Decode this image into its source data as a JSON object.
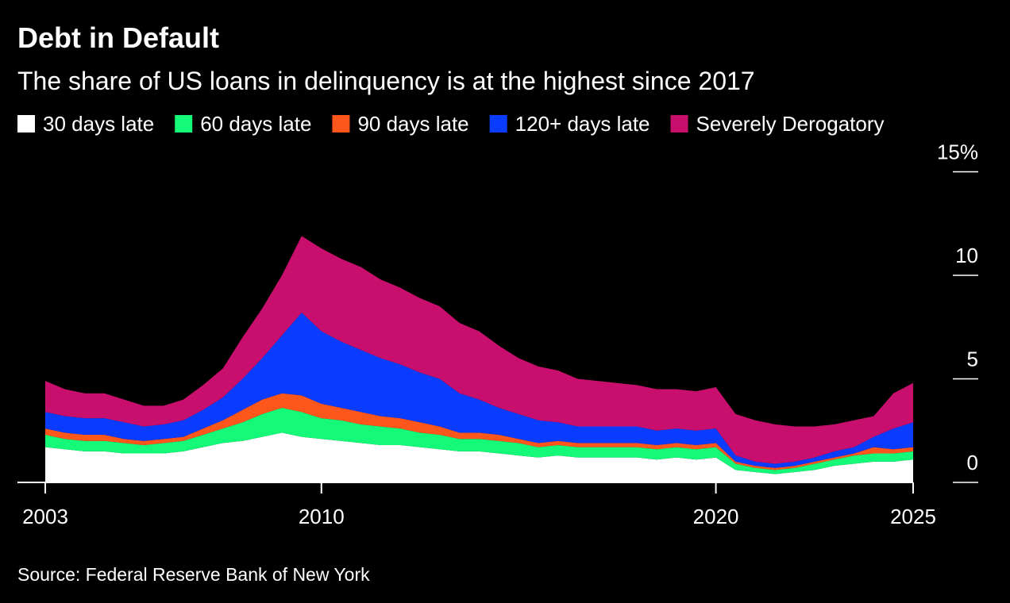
{
  "chart_data": {
    "type": "stacked_area",
    "title": "Debt in Default",
    "subtitle": "The share of US loans in delinquency is at the highest since 2017",
    "source": "Source: Federal Reserve Bank of New York",
    "x": [
      2003,
      2003.5,
      2004,
      2004.5,
      2005,
      2005.5,
      2006,
      2006.5,
      2007,
      2007.5,
      2008,
      2008.5,
      2009,
      2009.5,
      2010,
      2010.5,
      2011,
      2011.5,
      2012,
      2012.5,
      2013,
      2013.5,
      2014,
      2014.5,
      2015,
      2015.5,
      2016,
      2016.5,
      2017,
      2017.5,
      2018,
      2018.5,
      2019,
      2019.5,
      2020,
      2020.5,
      2021,
      2021.5,
      2022,
      2022.5,
      2023,
      2023.5,
      2024,
      2024.5,
      2025
    ],
    "series": [
      {
        "name": "30 days late",
        "color": "#ffffff",
        "values": [
          1.7,
          1.6,
          1.5,
          1.5,
          1.4,
          1.4,
          1.4,
          1.5,
          1.7,
          1.9,
          2.0,
          2.2,
          2.4,
          2.2,
          2.1,
          2.0,
          1.9,
          1.8,
          1.8,
          1.7,
          1.6,
          1.5,
          1.5,
          1.4,
          1.3,
          1.2,
          1.3,
          1.2,
          1.2,
          1.2,
          1.2,
          1.1,
          1.2,
          1.1,
          1.2,
          0.6,
          0.5,
          0.4,
          0.5,
          0.6,
          0.8,
          0.9,
          1.0,
          1.0,
          1.1
        ]
      },
      {
        "name": "60 days late",
        "color": "#14fa78",
        "values": [
          0.6,
          0.5,
          0.5,
          0.5,
          0.5,
          0.4,
          0.5,
          0.5,
          0.6,
          0.7,
          0.9,
          1.1,
          1.2,
          1.2,
          1.0,
          1.0,
          0.9,
          0.9,
          0.8,
          0.7,
          0.7,
          0.6,
          0.6,
          0.6,
          0.6,
          0.5,
          0.5,
          0.5,
          0.5,
          0.5,
          0.5,
          0.5,
          0.5,
          0.5,
          0.5,
          0.3,
          0.2,
          0.2,
          0.2,
          0.3,
          0.3,
          0.4,
          0.4,
          0.4,
          0.4
        ]
      },
      {
        "name": "90 days late",
        "color": "#ff561c",
        "values": [
          0.3,
          0.3,
          0.3,
          0.3,
          0.2,
          0.2,
          0.2,
          0.2,
          0.3,
          0.4,
          0.6,
          0.7,
          0.7,
          0.8,
          0.7,
          0.6,
          0.6,
          0.5,
          0.5,
          0.5,
          0.4,
          0.3,
          0.3,
          0.3,
          0.2,
          0.2,
          0.2,
          0.2,
          0.2,
          0.2,
          0.2,
          0.2,
          0.2,
          0.2,
          0.2,
          0.1,
          0.1,
          0.1,
          0.1,
          0.1,
          0.1,
          0.1,
          0.3,
          0.2,
          0.2
        ]
      },
      {
        "name": "120+ days late",
        "color": "#0a3cff",
        "values": [
          0.8,
          0.8,
          0.8,
          0.8,
          0.8,
          0.7,
          0.7,
          0.8,
          0.9,
          1.1,
          1.5,
          2.0,
          2.8,
          4.0,
          3.5,
          3.2,
          3.0,
          2.8,
          2.6,
          2.4,
          2.3,
          1.9,
          1.6,
          1.3,
          1.2,
          1.1,
          0.9,
          0.8,
          0.8,
          0.8,
          0.8,
          0.7,
          0.7,
          0.7,
          0.7,
          0.3,
          0.2,
          0.2,
          0.2,
          0.2,
          0.3,
          0.3,
          0.5,
          1.0,
          1.2
        ]
      },
      {
        "name": "Severely Derogatory",
        "color": "#c80f6e",
        "values": [
          1.5,
          1.3,
          1.2,
          1.2,
          1.1,
          1.0,
          0.9,
          1.0,
          1.2,
          1.4,
          2.0,
          2.4,
          2.9,
          3.7,
          4.0,
          4.0,
          4.0,
          3.8,
          3.7,
          3.6,
          3.5,
          3.4,
          3.3,
          3.0,
          2.7,
          2.6,
          2.5,
          2.3,
          2.2,
          2.1,
          2.0,
          2.0,
          1.9,
          1.9,
          2.0,
          2.0,
          2.0,
          1.9,
          1.7,
          1.5,
          1.3,
          1.3,
          1.0,
          1.7,
          1.9
        ]
      }
    ],
    "xlim": [
      2003,
      2025
    ],
    "xticks": [
      2003,
      2010,
      2020,
      2025
    ],
    "ylim": [
      0,
      15
    ],
    "yticks": [
      0,
      5,
      10,
      {
        "value": 15,
        "label": "15%"
      }
    ]
  }
}
